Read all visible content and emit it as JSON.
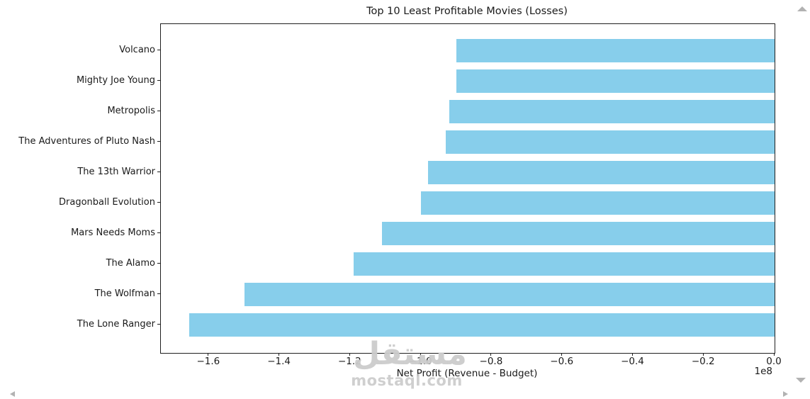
{
  "chart_data": {
    "type": "bar",
    "orientation": "horizontal",
    "title": "Top 10 Least Profitable Movies (Losses)",
    "xlabel": "Net Profit (Revenue - Budget)",
    "ylabel": "",
    "offset_text": "1e8",
    "unit": "values are in units of 1e8 (hundreds of millions)",
    "categories": [
      "Volcano",
      "Mighty Joe Young",
      "Metropolis",
      "The Adventures of Pluto Nash",
      "The 13th Warrior",
      "Dragonball Evolution",
      "Mars Needs Moms",
      "The Alamo",
      "The Wolfman",
      "The Lone Ranger"
    ],
    "values": [
      -0.9,
      -0.9,
      -0.92,
      -0.93,
      -0.98,
      -1.0,
      -1.11,
      -1.19,
      -1.5,
      -1.655
    ],
    "xlim": [
      -1.736,
      0
    ],
    "xticks": [
      -1.6,
      -1.4,
      -1.2,
      -1.0,
      -0.8,
      -0.6,
      -0.4,
      -0.2,
      0.0
    ],
    "xtick_labels": [
      "−1.6",
      "−1.4",
      "−1.2",
      "−1.0",
      "−0.8",
      "−0.6",
      "−0.4",
      "−0.2",
      "0.0"
    ],
    "bar_color": "#87CEEB",
    "grid": false,
    "legend": false
  },
  "watermark": {
    "logo_text": "مستقل",
    "site_text": "mostaql.com",
    "color": "#cbcbcb"
  },
  "viewer": {
    "arrow_color": "#b2b2b2"
  }
}
